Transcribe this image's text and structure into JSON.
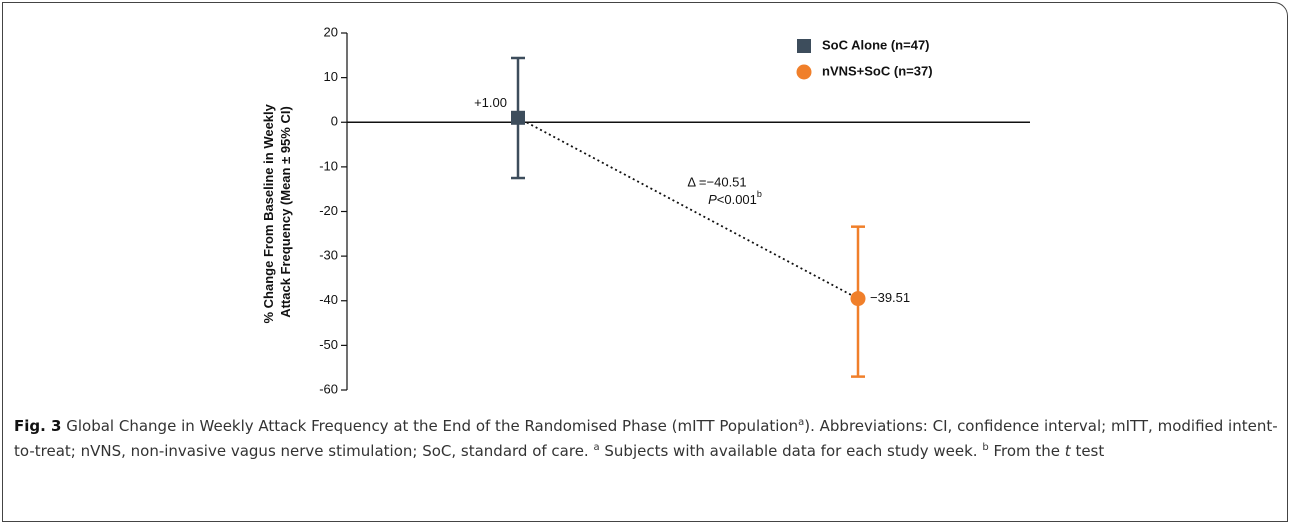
{
  "chart_data": {
    "type": "errorbar",
    "ylabel": [
      "% Change From Baseline in Weekly",
      "Attack Frequency (Mean ± 95% CI)"
    ],
    "ylim": [
      -60,
      20
    ],
    "yticks": [
      -60,
      -50,
      -40,
      -30,
      -20,
      -10,
      0,
      10,
      20
    ],
    "legend": "top-right",
    "series": [
      {
        "name": "SoC Alone (n=47)",
        "color": "#3d4d5c",
        "marker": "square",
        "values": [
          1.0
        ],
        "value_labels": [
          "+1.00"
        ],
        "ci_low": [
          -12.5
        ],
        "ci_high": [
          14.4
        ]
      },
      {
        "name": "nVNS+SoC (n=37)",
        "color": "#f07f2a",
        "marker": "circle",
        "values": [
          -39.51
        ],
        "value_labels": [
          "−39.51"
        ],
        "ci_low": [
          -57
        ],
        "ci_high": [
          -23.4
        ]
      }
    ],
    "annotation": {
      "delta": "Δ =−40.51",
      "p_italic": "P",
      "p_text": "<0.001",
      "p_sup": "b"
    }
  },
  "caption": {
    "label": "Fig. 3",
    "text1": " Global Change in Weekly Attack Frequency at the End of the Randomised Phase (mITT Population",
    "sup_a": "a",
    "text2": "). Abbreviations: CI, confidence interval; mITT, modified intent-to-treat; nVNS, non-invasive vagus nerve stimulation; SoC, standard of care. ",
    "sup_a2": "a",
    "text3": " Subjects with available data for each study week. ",
    "sup_b": "b",
    "text4": " From the ",
    "italic_t": "t",
    "text5": " test"
  }
}
